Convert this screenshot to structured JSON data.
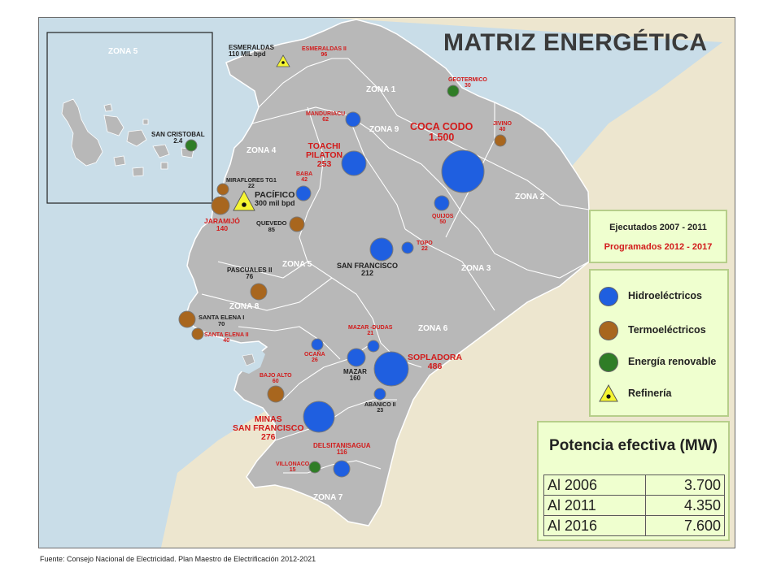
{
  "title": "MATRIZ ENERGÉTICA",
  "zones": [
    "ZONA 1",
    "ZONA 2",
    "ZONA 3",
    "ZONA 4",
    "ZONA 5",
    "ZONA 6",
    "ZONA 7",
    "ZONA 8",
    "ZONA 9",
    "ZONA 5"
  ],
  "labels": {
    "esmeraldas": [
      "ESMERALDAS",
      "110 MIL bpd"
    ],
    "esmeraldas_ii": [
      "ESMERALDAS II",
      "96"
    ],
    "geotermico": [
      "GEOTERMICO",
      "30"
    ],
    "san_cristobal": [
      "SAN CRISTOBAL",
      "2.4"
    ],
    "manduriacu": [
      "MANDURIACU",
      "62"
    ],
    "coca_codo": [
      "COCA CODO",
      "1.500"
    ],
    "jivino": [
      "JIVINO",
      "40"
    ],
    "toachi": [
      "TOACHI",
      "PILATON",
      "253"
    ],
    "miraflores": [
      "MIRAFLORES TG1",
      "22"
    ],
    "baba": [
      "BABA",
      "42"
    ],
    "pacifico": [
      "PACÍFICO",
      "300 mil bpd"
    ],
    "quijos": [
      "QUIJOS",
      "50"
    ],
    "jaramijo": [
      "JARAMIJÓ",
      "140"
    ],
    "quevedo": [
      "QUEVEDO",
      "85"
    ],
    "topo": [
      "TOPO",
      "22"
    ],
    "san_francisco": [
      "SAN FRANCISCO",
      "212"
    ],
    "pascuales": [
      "PASCUALES II",
      "76"
    ],
    "santa_elena_i": [
      "SANTA ELENA I",
      "70"
    ],
    "santa_elena_ii": [
      "SANTA ELENA II",
      "40"
    ],
    "mazar_dudas": [
      "MAZAR -DUDAS",
      "21"
    ],
    "ocana": [
      "OCAÑA",
      "26"
    ],
    "mazar": [
      "MAZAR",
      "160"
    ],
    "sopladora": [
      "SOPLADORA",
      "486"
    ],
    "bajo_alto": [
      "BAJO ALTO",
      "60"
    ],
    "abanico": [
      "ABANICO II",
      "23"
    ],
    "minas": [
      "MINAS",
      "SAN FRANCISCO",
      "276"
    ],
    "delsitanisagua": [
      "DELSITANISAGUA",
      "116"
    ],
    "villonaco": [
      "VILLONACO",
      "15"
    ]
  },
  "legend_status": {
    "executed": "Ejecutados 2007 - 2011",
    "planned": "Programados 2012 - 2017"
  },
  "legend_types": [
    {
      "label": "Hidroeléctricos",
      "color": "#1f5fe0"
    },
    {
      "label": "Termoeléctricos",
      "color": "#a8661e"
    },
    {
      "label": "Energía renovable",
      "color": "#2f7d26"
    },
    {
      "label": "Refinería",
      "color": "#f5f531"
    }
  ],
  "capacity_table": {
    "header": "Potencia efectiva (MW)",
    "rows": [
      {
        "year": "Al 2006",
        "value": "3.700"
      },
      {
        "year": "Al 2011",
        "value": "4.350"
      },
      {
        "year": "Al 2016",
        "value": "7.600"
      }
    ]
  },
  "source": "Fuente: Consejo Nacional de Electricidad. Plan Maestro de Electrificación 2012-2021",
  "colors": {
    "hydro": "#1f5fe0",
    "thermal": "#a8661e",
    "renewable": "#2f7d26",
    "refinery": "#f5f531",
    "planned_text": "#d21b1b",
    "land": "#b8b8b8",
    "ocean": "#c9dde8",
    "neighbor": "#ede6cf"
  }
}
